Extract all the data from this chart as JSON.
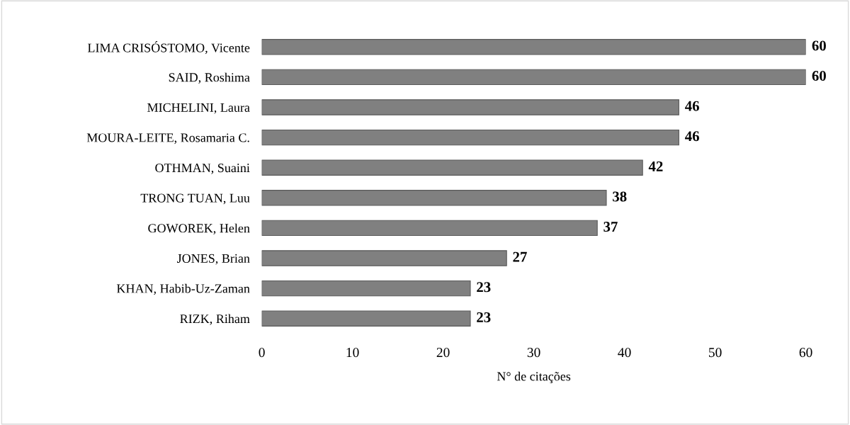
{
  "chart_data": {
    "type": "bar",
    "orientation": "horizontal",
    "xlabel": "N° de citações",
    "categories": [
      "LIMA CRISÓSTOMO, Vicente",
      "SAID, Roshima",
      "MICHELINI, Laura",
      "MOURA-LEITE, Rosamaria C.",
      "OTHMAN, Suaini",
      "TRONG TUAN, Luu",
      "GOWOREK, Helen",
      "JONES, Brian",
      "KHAN, Habib-Uz-Zaman",
      "RIZK, Riham"
    ],
    "values": [
      60,
      60,
      46,
      46,
      42,
      38,
      37,
      27,
      23,
      23
    ],
    "color": "#808080",
    "xlim": [
      0,
      60
    ],
    "xticks": [
      0,
      10,
      20,
      30,
      40,
      50,
      60
    ],
    "data_labels": true,
    "grid": false,
    "legend": false
  }
}
